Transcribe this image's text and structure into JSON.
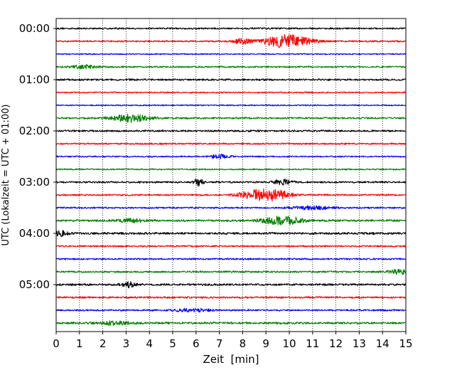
{
  "chart_data": {
    "type": "line",
    "title": "",
    "xlabel": "Zeit  [min]",
    "ylabel": "UTC (Lokalzeit = UTC + 01:00)",
    "xlim": [
      0,
      15
    ],
    "xticks": [
      0,
      1,
      2,
      3,
      4,
      5,
      6,
      7,
      8,
      9,
      10,
      11,
      12,
      13,
      14,
      15
    ],
    "vertical_grid": true,
    "grid_style": "dotted",
    "trace_interval_min": 15,
    "y_tick_labels": [
      "00:00",
      "01:00",
      "02:00",
      "03:00",
      "04:00",
      "05:00"
    ],
    "color_cycle": [
      "#000000",
      "#ff0000",
      "#0000ff",
      "#008000"
    ],
    "series": [
      {
        "start": "00:00",
        "color": "#000000",
        "base_amplitude": 0.16,
        "events": []
      },
      {
        "start": "00:15",
        "color": "#ff0000",
        "base_amplitude": 0.16,
        "events": [
          {
            "center_min": 8.0,
            "width_min": 0.25,
            "amplitude": 0.5
          },
          {
            "center_min": 9.9,
            "width_min": 0.7,
            "amplitude": 1.4
          }
        ]
      },
      {
        "start": "00:30",
        "color": "#0000ff",
        "base_amplitude": 0.12,
        "events": []
      },
      {
        "start": "00:45",
        "color": "#008000",
        "base_amplitude": 0.16,
        "events": [
          {
            "center_min": 1.2,
            "width_min": 0.4,
            "amplitude": 0.35
          }
        ]
      },
      {
        "start": "01:00",
        "color": "#000000",
        "base_amplitude": 0.18,
        "events": []
      },
      {
        "start": "01:15",
        "color": "#ff0000",
        "base_amplitude": 0.14,
        "events": []
      },
      {
        "start": "01:30",
        "color": "#0000ff",
        "base_amplitude": 0.12,
        "events": []
      },
      {
        "start": "01:45",
        "color": "#008000",
        "base_amplitude": 0.18,
        "events": [
          {
            "center_min": 3.2,
            "width_min": 0.55,
            "amplitude": 0.8
          }
        ]
      },
      {
        "start": "02:00",
        "color": "#000000",
        "base_amplitude": 0.18,
        "events": []
      },
      {
        "start": "02:15",
        "color": "#ff0000",
        "base_amplitude": 0.16,
        "events": []
      },
      {
        "start": "02:30",
        "color": "#0000ff",
        "base_amplitude": 0.14,
        "events": [
          {
            "center_min": 7.0,
            "width_min": 0.3,
            "amplitude": 0.4
          }
        ]
      },
      {
        "start": "02:45",
        "color": "#008000",
        "base_amplitude": 0.14,
        "events": []
      },
      {
        "start": "03:00",
        "color": "#000000",
        "base_amplitude": 0.18,
        "events": [
          {
            "center_min": 6.1,
            "width_min": 0.15,
            "amplitude": 0.8
          },
          {
            "center_min": 9.7,
            "width_min": 0.3,
            "amplitude": 0.5
          }
        ]
      },
      {
        "start": "03:15",
        "color": "#ff0000",
        "base_amplitude": 0.16,
        "events": [
          {
            "center_min": 8.2,
            "width_min": 0.4,
            "amplitude": 0.6
          },
          {
            "center_min": 9.2,
            "width_min": 0.55,
            "amplitude": 1.2
          }
        ]
      },
      {
        "start": "03:30",
        "color": "#0000ff",
        "base_amplitude": 0.16,
        "events": [
          {
            "center_min": 11.0,
            "width_min": 0.6,
            "amplitude": 0.35
          }
        ]
      },
      {
        "start": "03:45",
        "color": "#008000",
        "base_amplitude": 0.2,
        "events": [
          {
            "center_min": 9.7,
            "width_min": 0.6,
            "amplitude": 0.9
          },
          {
            "center_min": 3.2,
            "width_min": 0.4,
            "amplitude": 0.35
          }
        ]
      },
      {
        "start": "04:00",
        "color": "#000000",
        "base_amplitude": 0.22,
        "events": [
          {
            "center_min": 0.2,
            "width_min": 0.2,
            "amplitude": 0.5
          }
        ]
      },
      {
        "start": "04:15",
        "color": "#ff0000",
        "base_amplitude": 0.16,
        "events": []
      },
      {
        "start": "04:30",
        "color": "#0000ff",
        "base_amplitude": 0.16,
        "events": []
      },
      {
        "start": "04:45",
        "color": "#008000",
        "base_amplitude": 0.18,
        "events": [
          {
            "center_min": 14.7,
            "width_min": 0.3,
            "amplitude": 0.5
          }
        ]
      },
      {
        "start": "05:00",
        "color": "#000000",
        "base_amplitude": 0.2,
        "events": [
          {
            "center_min": 3.1,
            "width_min": 0.2,
            "amplitude": 0.6
          }
        ]
      },
      {
        "start": "05:15",
        "color": "#ff0000",
        "base_amplitude": 0.18,
        "events": []
      },
      {
        "start": "05:30",
        "color": "#0000ff",
        "base_amplitude": 0.16,
        "events": [
          {
            "center_min": 5.8,
            "width_min": 0.6,
            "amplitude": 0.3
          }
        ]
      },
      {
        "start": "05:45",
        "color": "#008000",
        "base_amplitude": 0.2,
        "events": [
          {
            "center_min": 2.5,
            "width_min": 0.5,
            "amplitude": 0.3
          }
        ]
      }
    ]
  }
}
